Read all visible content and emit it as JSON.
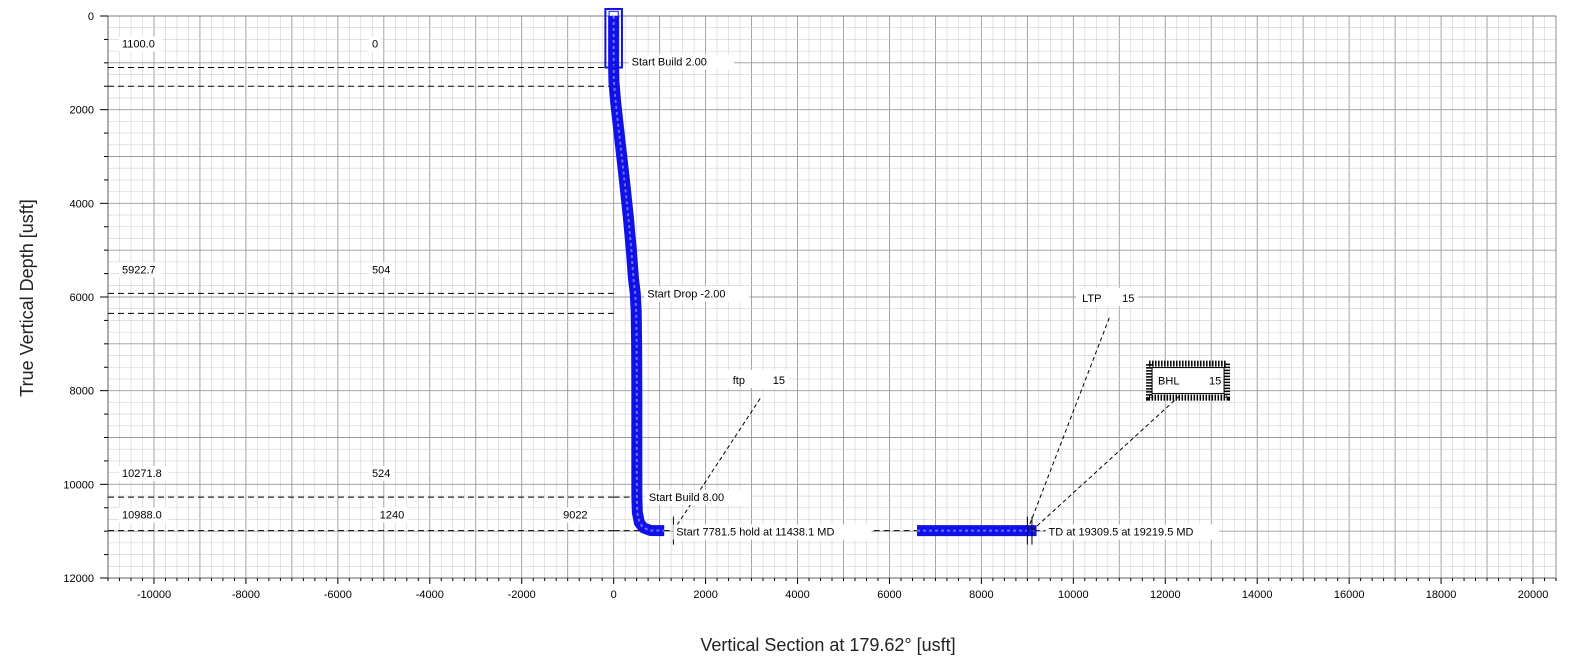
{
  "chart_data": {
    "type": "line",
    "xlabel": "Vertical Section at 179.62° [usft]",
    "ylabel": "True Vertical Depth [usft]",
    "xlim": [
      -11000,
      20500
    ],
    "ylim": [
      0,
      12000
    ],
    "y_inverted": true,
    "x_ticks": [
      -10000,
      -8000,
      -6000,
      -4000,
      -2000,
      0,
      2000,
      4000,
      6000,
      8000,
      10000,
      12000,
      14000,
      16000,
      18000,
      20000
    ],
    "y_ticks": [
      0,
      2000,
      4000,
      6000,
      8000,
      10000,
      12000
    ],
    "grid": true,
    "colors": {
      "wellpath": "#1010e8",
      "grid_major": "#9a9a9a",
      "grid_minor": "#cfcfcf"
    },
    "series": [
      {
        "points": [
          [
            0,
            0
          ],
          [
            0,
            1100
          ],
          [
            6,
            1400
          ],
          [
            40,
            1800
          ],
          [
            95,
            2300
          ],
          [
            165,
            2900
          ],
          [
            245,
            3600
          ],
          [
            320,
            4300
          ],
          [
            385,
            5000
          ],
          [
            430,
            5600
          ],
          [
            470,
            5923
          ],
          [
            490,
            6300
          ],
          [
            500,
            7000
          ],
          [
            504,
            8000
          ],
          [
            504,
            9500
          ],
          [
            505,
            10272
          ],
          [
            515,
            10600
          ],
          [
            560,
            10820
          ],
          [
            650,
            10930
          ],
          [
            800,
            10985
          ],
          [
            1100,
            10988
          ]
        ]
      },
      {
        "points": [
          [
            6600,
            10988
          ],
          [
            9200,
            10988
          ]
        ]
      }
    ],
    "depth_markers": [
      {
        "left": "1100.0",
        "mid": "0",
        "tvd": 1100
      },
      {
        "left": "5922.7",
        "mid": "504",
        "tvd": 5923
      },
      {
        "left": "10271.8",
        "mid": "524",
        "tvd": 10272
      },
      {
        "left": "10988.0",
        "mid": "1240",
        "extra": "9022",
        "tvd": 10988
      }
    ],
    "annotations": [
      {
        "text": "Start Build 2.00",
        "x": 0,
        "y": 1100
      },
      {
        "text": "Start Drop -2.00",
        "x": 470,
        "y": 5923
      },
      {
        "text": "Start Build 8.00",
        "x": 505,
        "y": 10272
      },
      {
        "text": "Start 7781.5 hold at 11438.1 MD",
        "x": 1100,
        "y": 10988
      },
      {
        "text": "TD at 19309.5 at 19219.5 MD",
        "x": 9200,
        "y": 10988
      }
    ],
    "targets": [
      {
        "name": "ftp",
        "value": "15",
        "x": 1300,
        "y": 10988
      },
      {
        "name": "LTP",
        "value": "15",
        "x": 9000,
        "y": 10988
      },
      {
        "name": "BHL",
        "value": "15",
        "x": 9100,
        "y": 10988,
        "boxed": true
      }
    ]
  }
}
